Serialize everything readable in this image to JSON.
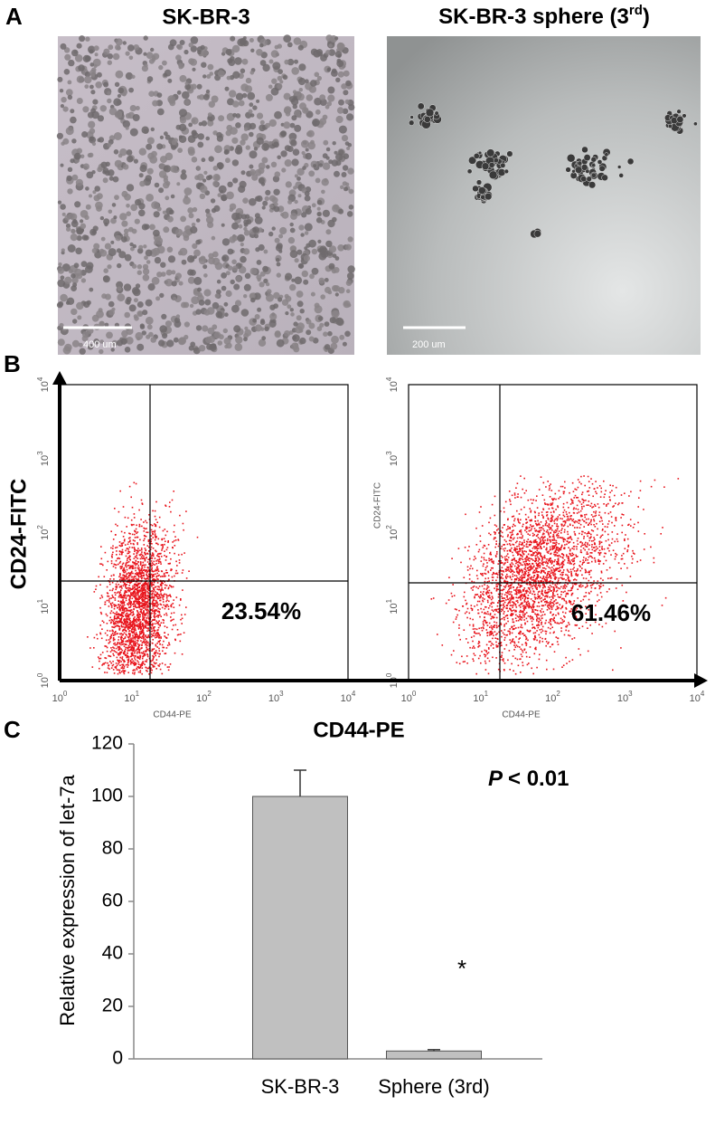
{
  "panel_a": {
    "label": "A",
    "images": [
      {
        "title": "SK-BR-3",
        "scale_bar": "400 um"
      },
      {
        "title": "SK-BR-3 sphere (3",
        "title_sup": "rd",
        "title_end": ")",
        "scale_bar": "200 um"
      }
    ]
  },
  "panel_b": {
    "label": "B",
    "y_axis_label": "CD24-FITC",
    "x_axis_label": "CD44-PE",
    "log_ticks": [
      {
        "base": "10",
        "exp": "0"
      },
      {
        "base": "10",
        "exp": "1"
      },
      {
        "base": "10",
        "exp": "2"
      },
      {
        "base": "10",
        "exp": "3"
      },
      {
        "base": "10",
        "exp": "4"
      }
    ],
    "plots": [
      {
        "x_label": "CD44-PE",
        "percent": "23.54%"
      },
      {
        "x_label": "CD44-PE",
        "y_label": "CD24-FITC",
        "percent": "61.46%"
      }
    ]
  },
  "panel_c": {
    "label": "C",
    "chart_data": {
      "type": "bar",
      "y_label": "Relative expression of let-7a",
      "categories": [
        "SK-BR-3",
        "Sphere (3rd)"
      ],
      "values": [
        100,
        3
      ],
      "errors": [
        10,
        0.5
      ],
      "color": "#c0c0c0",
      "ylim": [
        0,
        120
      ],
      "yticks": [
        0,
        20,
        40,
        60,
        80,
        100,
        120
      ],
      "annotation_p": "P",
      "annotation_rest": "< 0.01",
      "significance": "*"
    }
  }
}
